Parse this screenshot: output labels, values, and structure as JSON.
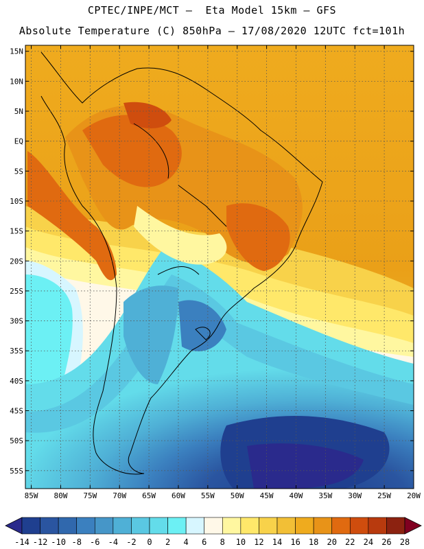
{
  "header": {
    "line1": "CPTEC/INPE/MCT –  Eta Model 15km – GFS",
    "line2": "Absolute Temperature (C) 850hPa – 17/08/2020 12UTC fct=101h"
  },
  "map": {
    "lon_range": [
      -86,
      -20
    ],
    "lat_range": [
      -58,
      16
    ],
    "lat_ticks": [
      {
        "value": 15,
        "label": "15N"
      },
      {
        "value": 10,
        "label": "10N"
      },
      {
        "value": 5,
        "label": "5N"
      },
      {
        "value": 0,
        "label": "EQ"
      },
      {
        "value": -5,
        "label": "5S"
      },
      {
        "value": -10,
        "label": "10S"
      },
      {
        "value": -15,
        "label": "15S"
      },
      {
        "value": -20,
        "label": "20S"
      },
      {
        "value": -25,
        "label": "25S"
      },
      {
        "value": -30,
        "label": "30S"
      },
      {
        "value": -35,
        "label": "35S"
      },
      {
        "value": -40,
        "label": "40S"
      },
      {
        "value": -45,
        "label": "45S"
      },
      {
        "value": -50,
        "label": "50S"
      },
      {
        "value": -55,
        "label": "55S"
      }
    ],
    "lon_ticks": [
      {
        "value": -85,
        "label": "85W"
      },
      {
        "value": -80,
        "label": "80W"
      },
      {
        "value": -75,
        "label": "75W"
      },
      {
        "value": -70,
        "label": "70W"
      },
      {
        "value": -65,
        "label": "65W"
      },
      {
        "value": -60,
        "label": "60W"
      },
      {
        "value": -55,
        "label": "55W"
      },
      {
        "value": -50,
        "label": "50W"
      },
      {
        "value": -45,
        "label": "45W"
      },
      {
        "value": -40,
        "label": "40W"
      },
      {
        "value": -35,
        "label": "35W"
      },
      {
        "value": -30,
        "label": "30W"
      },
      {
        "value": -25,
        "label": "25W"
      },
      {
        "value": -20,
        "label": "20W"
      }
    ]
  },
  "colorbar": {
    "labels": [
      "-14",
      "-12",
      "-10",
      "-8",
      "-6",
      "-4",
      "-2",
      "0",
      "2",
      "4",
      "6",
      "8",
      "10",
      "12",
      "14",
      "16",
      "18",
      "20",
      "22",
      "24",
      "26",
      "28"
    ],
    "colors": [
      "#1f3f8f",
      "#2a55a0",
      "#3068ad",
      "#3b80bf",
      "#4696c8",
      "#4fb0d6",
      "#5ac8e2",
      "#63dcea",
      "#6cf0f4",
      "#d7f6ff",
      "#fff8e8",
      "#fff7a0",
      "#ffe86a",
      "#f8d24a",
      "#f2bf36",
      "#efab1e",
      "#e89318",
      "#e06a10",
      "#cf4d0e",
      "#b83a0e",
      "#8c2210"
    ],
    "under_color": "#2a2a8c",
    "over_color": "#800020"
  }
}
